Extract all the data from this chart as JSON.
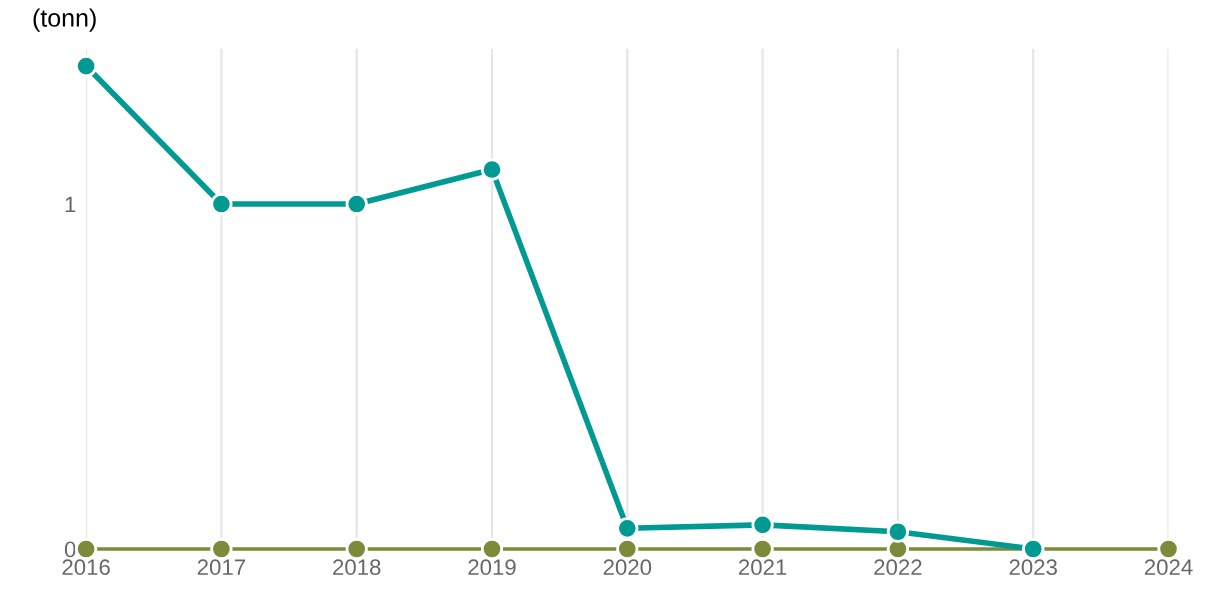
{
  "chart_data": {
    "type": "line",
    "ylabel": "(tonn)",
    "x": [
      2016,
      2017,
      2018,
      2019,
      2020,
      2021,
      2022,
      2023,
      2024
    ],
    "series": [
      {
        "color": "#7b8b3a",
        "values": [
          0,
          0,
          0,
          0,
          0,
          0,
          0,
          0,
          0
        ]
      },
      {
        "color": "#009a93",
        "values": [
          1.4,
          1.0,
          1.0,
          1.1,
          0.06,
          0.07,
          0.05,
          0.0,
          null
        ]
      }
    ],
    "xlim": [
      2016,
      2024
    ],
    "xticks": [
      2016,
      2017,
      2018,
      2019,
      2020,
      2021,
      2022,
      2023,
      2024
    ],
    "ylim": [
      0,
      1.45
    ],
    "yticks": [
      0,
      1
    ],
    "grid": "x",
    "marker": "circle",
    "legend": false
  }
}
